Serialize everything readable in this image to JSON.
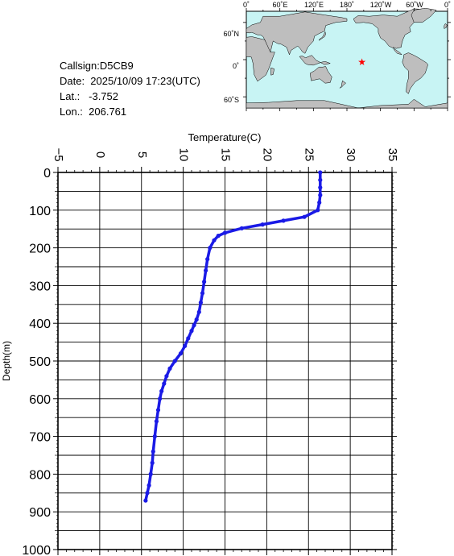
{
  "info": {
    "callsign": "Callsign:D5CB9",
    "date": "Date:  2025/10/09 17:23(UTC)",
    "lat": "Lat.:   -3.752",
    "lon": "Lon.:  206.761"
  },
  "map": {
    "top_labels": [
      "0˚",
      "60˚E",
      "120˚E",
      "180˚",
      "120˚W",
      "60˚W",
      "0˚"
    ],
    "left_labels": [
      "60˚N",
      "0˚",
      "60˚S"
    ],
    "ocean_color": "#c8f4f4",
    "land_color": "#bebebe",
    "marker": {
      "lon": 206.761,
      "lat": -3.752,
      "color": "#ff0000",
      "icon": "star-icon"
    }
  },
  "chart_data": {
    "type": "line",
    "title": "",
    "xlabel": "Temperature(C)",
    "ylabel": "Depth(m)",
    "xlim": [
      -5,
      35
    ],
    "ylim": [
      1000,
      0
    ],
    "x_ticks": [
      -5,
      0,
      5,
      10,
      15,
      20,
      25,
      30,
      35
    ],
    "y_ticks": [
      0,
      100,
      200,
      300,
      400,
      500,
      600,
      700,
      800,
      900,
      1000
    ],
    "grid": true,
    "series_color": "#1a1ae6",
    "series": [
      {
        "x": [
          26.4,
          26.4,
          26.4,
          26.4,
          26.3,
          26.1,
          24.5,
          22.0,
          19.5,
          17.0,
          15.0,
          14.2,
          13.7,
          13.2,
          12.9,
          12.7,
          12.5,
          12.3,
          12.1,
          11.9,
          11.6,
          11.3,
          11.0,
          10.6,
          10.2,
          9.7,
          9.0,
          8.4,
          8.0,
          7.7,
          7.4,
          7.2,
          7.0,
          6.8,
          6.6,
          6.4,
          6.3,
          6.1,
          5.9,
          5.7,
          5.5
        ],
        "y": [
          0,
          20,
          40,
          60,
          80,
          100,
          118,
          128,
          138,
          148,
          160,
          168,
          180,
          200,
          230,
          260,
          290,
          320,
          345,
          370,
          390,
          405,
          420,
          440,
          460,
          480,
          500,
          520,
          540,
          560,
          580,
          600,
          630,
          660,
          700,
          740,
          770,
          800,
          830,
          850,
          870
        ]
      }
    ]
  }
}
